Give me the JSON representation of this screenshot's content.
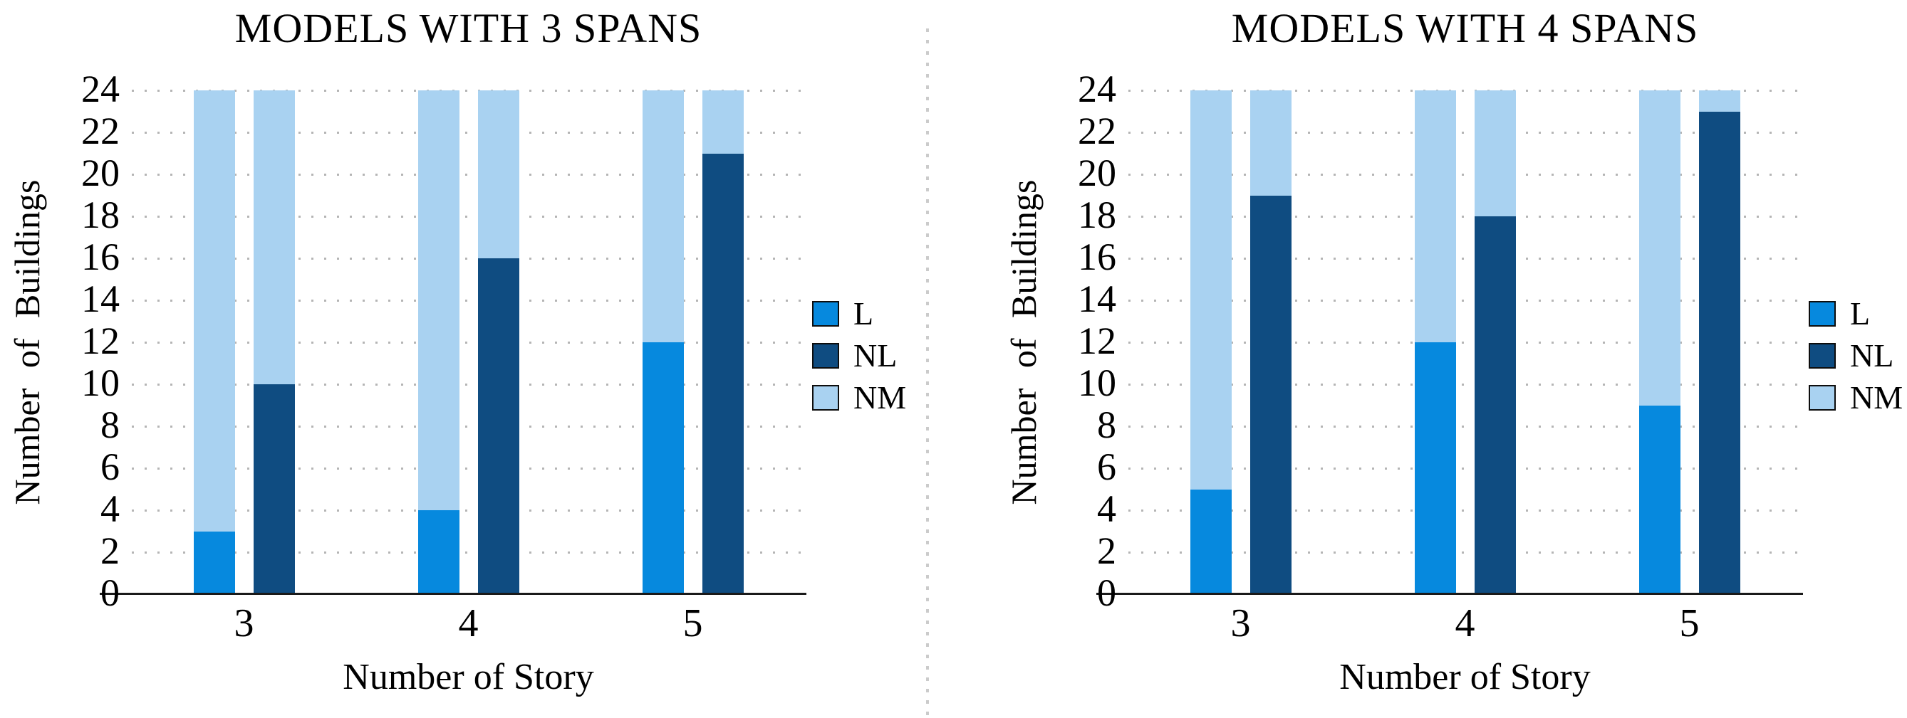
{
  "figure": {
    "background": "#ffffff",
    "divider_style": "vertical dotted light-gray line between the two charts"
  },
  "colors": {
    "L": "#0689de",
    "NL": "#0f4c81",
    "NM": "#a9d2f1",
    "grid_dots": "#b5b5b5",
    "axis_line": "#1a1a1a",
    "text": "#000000"
  },
  "chart_data": [
    {
      "type": "bar",
      "title": "MODELS WITH 3 SPANS",
      "xlabel": "Number of Story",
      "ylabel": "Number  of  Buildings",
      "categories": [
        "3",
        "4",
        "5"
      ],
      "ylim": [
        0,
        24
      ],
      "ytick_step": 2,
      "grid": "dotted horizontal lines at every y tick",
      "legend": [
        "L",
        "NL",
        "NM"
      ],
      "legend_position": "right",
      "stacking": "each category shows two stacked columns: [L + NM remainder to 24] and [NL + NM remainder to 24]",
      "series": [
        {
          "name": "L",
          "values": [
            3,
            4,
            12
          ]
        },
        {
          "name": "NL",
          "values": [
            10,
            16,
            21
          ]
        },
        {
          "name": "NM_on_L_bar",
          "values": [
            21,
            20,
            12
          ]
        },
        {
          "name": "NM_on_NL_bar",
          "values": [
            14,
            8,
            3
          ]
        }
      ]
    },
    {
      "type": "bar",
      "title": "MODELS WITH 4 SPANS",
      "xlabel": "Number of Story",
      "ylabel": "Number  of  Buildings",
      "categories": [
        "3",
        "4",
        "5"
      ],
      "ylim": [
        0,
        24
      ],
      "ytick_step": 2,
      "grid": "dotted horizontal lines at every y tick",
      "legend": [
        "L",
        "NL",
        "NM"
      ],
      "legend_position": "right",
      "stacking": "each category shows two stacked columns: [L + NM remainder to 24] and [NL + NM remainder to 24]",
      "series": [
        {
          "name": "L",
          "values": [
            5,
            12,
            9
          ]
        },
        {
          "name": "NL",
          "values": [
            19,
            18,
            23
          ]
        },
        {
          "name": "NM_on_L_bar",
          "values": [
            19,
            12,
            15
          ]
        },
        {
          "name": "NM_on_NL_bar",
          "values": [
            5,
            6,
            1
          ]
        }
      ]
    }
  ]
}
